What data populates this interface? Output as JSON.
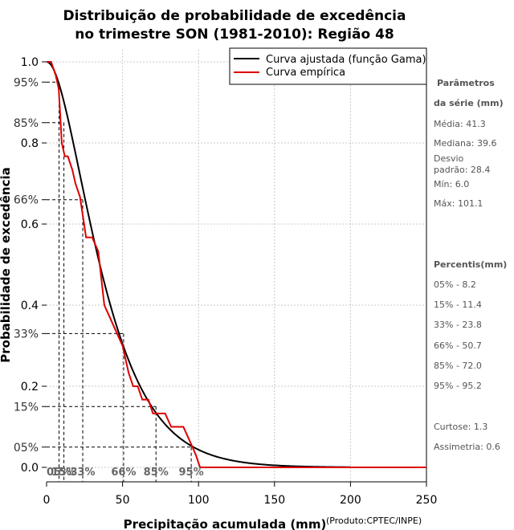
{
  "chart_data": {
    "type": "line",
    "title": [
      "Distribuição de probabilidade de excedência",
      "no trimestre SON (1981-2010): Região 48"
    ],
    "xlabel": "Precipitação acumulada (mm)",
    "ylabel": "Probabilidade de excedência",
    "credit": "(Produto:CPTEC/INPE)",
    "xlim": [
      0,
      250
    ],
    "ylim": [
      0,
      1
    ],
    "x_ticks": [
      "0",
      "50",
      "100",
      "150",
      "200",
      "250"
    ],
    "y_ticks": [
      "0.0",
      "0.2",
      "0.4",
      "0.6",
      "0.8",
      "1.0"
    ],
    "y_pct_ticks": [
      "05%",
      "15%",
      "33%",
      "66%",
      "85%",
      "95%"
    ],
    "x_pct_labels": [
      "05%",
      "15%",
      "33%",
      "66%",
      "85%",
      "95%"
    ],
    "legend": [
      "Curva ajustada (função Gama)",
      "Curva empírica"
    ],
    "series": [
      {
        "name": "Curva ajustada (função Gama)",
        "color": "#000000",
        "gamma_shape": 2.1,
        "gamma_scale": 19.7,
        "x_range": [
          0,
          200
        ]
      },
      {
        "name": "Curva empírica",
        "color": "#dd0000",
        "x": [
          0,
          3,
          6,
          8,
          10,
          12,
          14,
          17,
          19,
          22,
          26,
          30,
          34,
          38,
          42,
          46,
          50,
          54,
          57,
          60,
          63,
          67,
          70,
          74,
          78,
          82,
          86,
          90,
          94,
          98,
          101,
          250
        ],
        "values": [
          1.0,
          1.0,
          0.967,
          0.933,
          0.8,
          0.767,
          0.767,
          0.733,
          0.7,
          0.667,
          0.567,
          0.567,
          0.533,
          0.4,
          0.367,
          0.333,
          0.3,
          0.233,
          0.2,
          0.2,
          0.167,
          0.167,
          0.133,
          0.133,
          0.133,
          0.1,
          0.1,
          0.1,
          0.067,
          0.033,
          0.0,
          0.0
        ]
      }
    ],
    "percentile_x": [
      8.2,
      11.4,
      23.8,
      50.7,
      72.0,
      95.2
    ],
    "percentile_p": [
      0.95,
      0.85,
      0.66,
      0.33,
      0.15,
      0.05
    ]
  },
  "side_panel": {
    "params_title": [
      "Parâmetros",
      "da série (mm)"
    ],
    "params": [
      "Média: 41.3",
      "Mediana: 39.6",
      "Desvio",
      "padrão: 28.4",
      "Mín: 6.0",
      "Máx: 101.1"
    ],
    "percentis_title": "Percentis(mm)",
    "percentis": [
      "05% - 8.2",
      "15% - 11.4",
      "33% - 23.8",
      "66% - 50.7",
      "85% - 72.0",
      "95% - 95.2"
    ],
    "curtose": "Curtose: 1.3",
    "assimetria": "Assimetria: 0.6"
  }
}
